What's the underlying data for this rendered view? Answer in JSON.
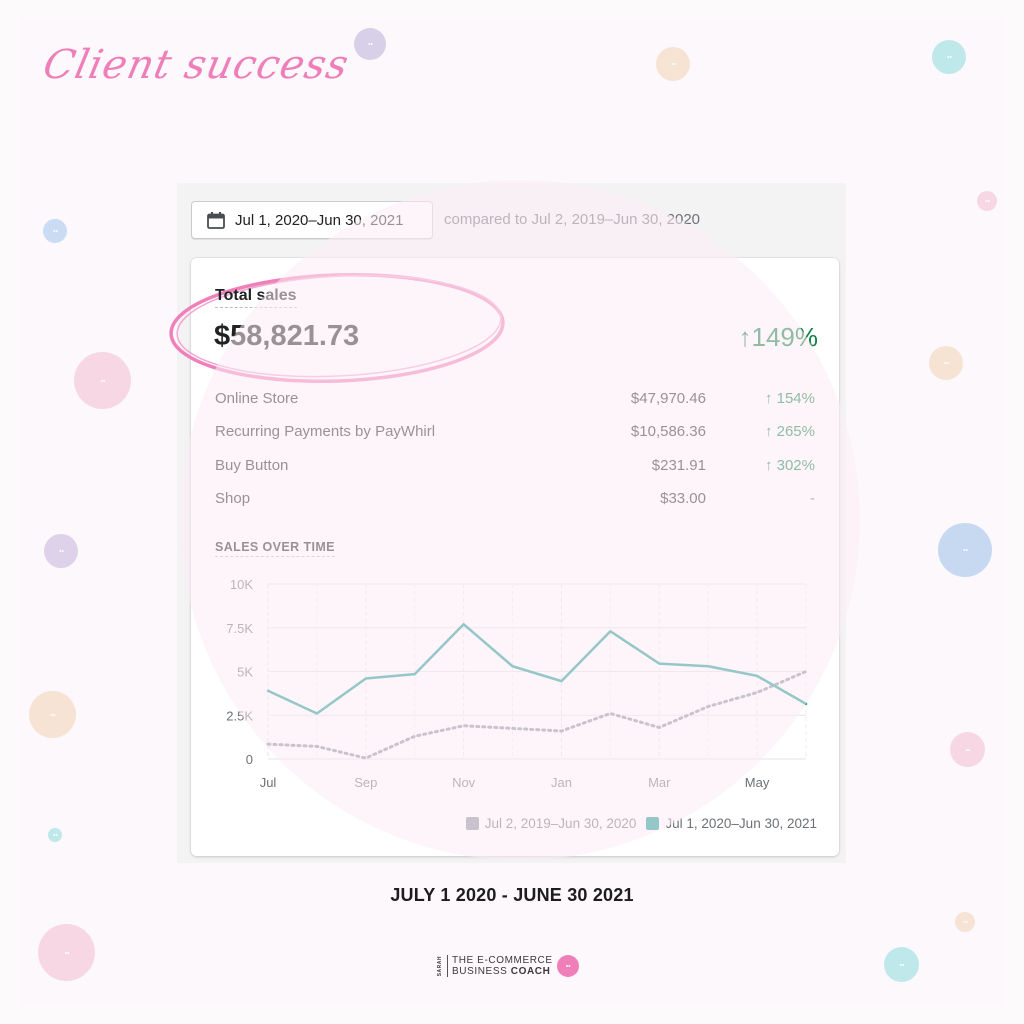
{
  "header": {
    "script_title": "Client success"
  },
  "date_picker": {
    "label": "Jul 1, 2020–Jun 30, 2021",
    "compared_text": "compared to Jul 2, 2019–Jun 30, 2020"
  },
  "card": {
    "total_label": "Total sales",
    "total_value": "$58,821.73",
    "total_change": "↑149%",
    "rows": [
      {
        "name": "Online Store",
        "amount": "$47,970.46",
        "change": "↑ 154%"
      },
      {
        "name": "Recurring Payments by PayWhirl",
        "amount": "$10,586.36",
        "change": "↑ 265%"
      },
      {
        "name": "Buy Button",
        "amount": "$231.91",
        "change": "↑ 302%"
      },
      {
        "name": "Shop",
        "amount": "$33.00",
        "change": "-"
      }
    ],
    "sales_over_time_title": "SALES OVER TIME"
  },
  "chart_data": {
    "type": "line",
    "title": "SALES OVER TIME",
    "x": [
      "Jul",
      "Aug",
      "Sep",
      "Oct",
      "Nov",
      "Dec",
      "Jan",
      "Feb",
      "Mar",
      "Apr",
      "May",
      "Jun"
    ],
    "x_tick_labels": [
      "Jul",
      "Sep",
      "Nov",
      "Jan",
      "Mar",
      "May"
    ],
    "x_tick_indices": [
      0,
      2,
      4,
      6,
      8,
      10
    ],
    "y_ticks": [
      0,
      2500,
      5000,
      7500,
      10000
    ],
    "y_tick_labels": [
      "0",
      "2.5K",
      "5K",
      "7.5K",
      "10K"
    ],
    "ylim": [
      0,
      10000
    ],
    "grid": true,
    "legend_position": "bottom-right",
    "series": [
      {
        "name": "Jul 2, 2019–Jun 30, 2020",
        "color": "#8c91a1",
        "style": "dotted",
        "values": [
          850,
          720,
          50,
          1300,
          1900,
          1750,
          1600,
          2600,
          1800,
          3000,
          3800,
          5000
        ]
      },
      {
        "name": "Jul 1, 2020–Jun 30, 2021",
        "color": "#1b9a93",
        "style": "solid",
        "values": [
          3900,
          2600,
          4600,
          4850,
          7700,
          5300,
          4450,
          7300,
          5450,
          5300,
          4750,
          3150
        ]
      }
    ]
  },
  "caption": "JULY 1 2020 - JUNE 30 2021",
  "logo": {
    "side": "SARAH",
    "line1": "THE E-COMMERCE",
    "line2a": "BUSINESS",
    "line2b": "COACH"
  },
  "colors": {
    "accent_pink": "#ee7fb9",
    "positive_green": "#108043",
    "series_current": "#1b9a93",
    "series_previous": "#8c91a1"
  }
}
